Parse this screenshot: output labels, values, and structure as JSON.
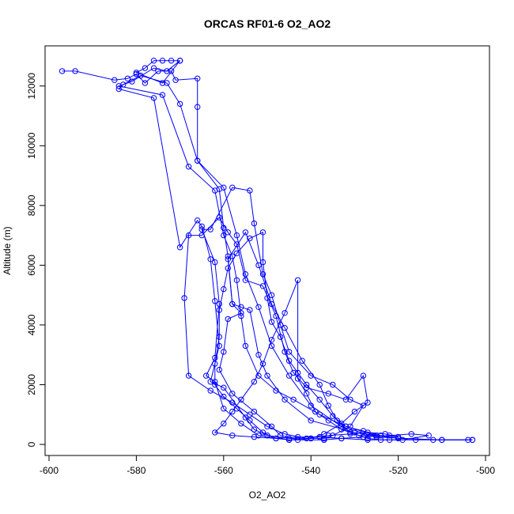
{
  "chart_data": {
    "type": "line",
    "title": "ORCAS RF01-6 O2_AO2",
    "xlabel": "O2_AO2",
    "ylabel": "Altitude (m)",
    "xlim": [
      -600,
      -500
    ],
    "ylim": [
      0,
      13000
    ],
    "x_ticks": [
      -600,
      -580,
      -560,
      -540,
      -520,
      -500
    ],
    "y_ticks": [
      0,
      2000,
      4000,
      6000,
      8000,
      10000,
      12000
    ],
    "x_tick_labels": [
      "-600",
      "-580",
      "-560",
      "-540",
      "-520",
      "-500"
    ],
    "y_tick_labels": [
      "0",
      "2000",
      "4000",
      "6000",
      "8000",
      "10000",
      "12000"
    ],
    "grid": false,
    "series_color": "#0000ff",
    "markers": "open-circle",
    "series": [
      {
        "points": [
          [
            -597,
            12500
          ],
          [
            -594,
            12500
          ],
          [
            -585,
            12200
          ],
          [
            -582,
            12250
          ],
          [
            -580,
            12400
          ],
          [
            -578,
            12100
          ],
          [
            -575,
            12500
          ],
          [
            -572,
            12500
          ],
          [
            -571,
            12200
          ],
          [
            -566,
            12250
          ],
          [
            -566,
            11300
          ],
          [
            -566,
            9500
          ],
          [
            -561,
            8550
          ],
          [
            -560,
            7250
          ],
          [
            -559,
            6300
          ],
          [
            -558,
            4700
          ],
          [
            -556,
            4600
          ],
          [
            -554,
            4500
          ],
          [
            -552,
            3000
          ],
          [
            -550,
            2300
          ],
          [
            -546,
            1500
          ],
          [
            -540,
            800
          ],
          [
            -530,
            400
          ],
          [
            -520,
            200
          ],
          [
            -510,
            150
          ],
          [
            -503,
            150
          ]
        ]
      },
      {
        "points": [
          [
            -503,
            150
          ],
          [
            -512,
            150
          ],
          [
            -525,
            250
          ],
          [
            -533,
            600
          ],
          [
            -540,
            1300
          ],
          [
            -545,
            2300
          ],
          [
            -549,
            3300
          ],
          [
            -552,
            4600
          ],
          [
            -555,
            5700
          ],
          [
            -557,
            7000
          ],
          [
            -560,
            8600
          ],
          [
            -566,
            9500
          ],
          [
            -570,
            11400
          ],
          [
            -573,
            12100
          ],
          [
            -579,
            12350
          ],
          [
            -583,
            12050
          ],
          [
            -584,
            11900
          ],
          [
            -576,
            11600
          ],
          [
            -570,
            6600
          ],
          [
            -566,
            7500
          ],
          [
            -565,
            7300
          ],
          [
            -563,
            6200
          ],
          [
            -562,
            4800
          ],
          [
            -561,
            3300
          ],
          [
            -563,
            2100
          ],
          [
            -560,
            1900
          ],
          [
            -555,
            900
          ],
          [
            -553,
            500
          ],
          [
            -550,
            300
          ],
          [
            -545,
            200
          ],
          [
            -537,
            200
          ]
        ]
      },
      {
        "points": [
          [
            -537,
            200
          ],
          [
            -535,
            300
          ],
          [
            -531,
            600
          ],
          [
            -528,
            1300
          ],
          [
            -531,
            1500
          ],
          [
            -535,
            2000
          ],
          [
            -540,
            2300
          ],
          [
            -545,
            3100
          ],
          [
            -547,
            4000
          ],
          [
            -549,
            5000
          ],
          [
            -551,
            5700
          ],
          [
            -553,
            7400
          ],
          [
            -554,
            8500
          ],
          [
            -558,
            8600
          ],
          [
            -563,
            7200
          ],
          [
            -565,
            7200
          ],
          [
            -562,
            6100
          ],
          [
            -561,
            4700
          ],
          [
            -562,
            2900
          ],
          [
            -564,
            2300
          ],
          [
            -562,
            2100
          ],
          [
            -560,
            1200
          ],
          [
            -556,
            700
          ],
          [
            -552,
            300
          ],
          [
            -545,
            150
          ],
          [
            -537,
            150
          ]
        ]
      },
      {
        "points": [
          [
            -537,
            150
          ],
          [
            -533,
            200
          ],
          [
            -528,
            250
          ],
          [
            -522,
            300
          ],
          [
            -517,
            350
          ],
          [
            -513,
            300
          ],
          [
            -519,
            150
          ],
          [
            -524,
            150
          ],
          [
            -527,
            200
          ],
          [
            -531,
            400
          ],
          [
            -534,
            800
          ],
          [
            -536,
            1300
          ],
          [
            -538,
            2000
          ],
          [
            -542,
            2800
          ],
          [
            -546,
            3900
          ],
          [
            -549,
            4700
          ],
          [
            -552,
            6000
          ],
          [
            -555,
            7100
          ],
          [
            -559,
            6200
          ],
          [
            -558,
            4700
          ],
          [
            -556,
            4400
          ],
          [
            -559,
            4200
          ],
          [
            -560,
            3100
          ],
          [
            -561,
            2500
          ],
          [
            -558,
            1700
          ],
          [
            -553,
            1100
          ],
          [
            -549,
            600
          ],
          [
            -547,
            300
          ],
          [
            -543,
            150
          ],
          [
            -540,
            200
          ]
        ]
      },
      {
        "points": [
          [
            -540,
            200
          ],
          [
            -537,
            350
          ],
          [
            -533,
            700
          ],
          [
            -530,
            1100
          ],
          [
            -527,
            1400
          ],
          [
            -528,
            2300
          ],
          [
            -532,
            1500
          ],
          [
            -536,
            1700
          ],
          [
            -541,
            1900
          ],
          [
            -544,
            2400
          ],
          [
            -546,
            3100
          ],
          [
            -548,
            4300
          ],
          [
            -551,
            5300
          ],
          [
            -555,
            5500
          ],
          [
            -557,
            6700
          ],
          [
            -559,
            7100
          ],
          [
            -561,
            7600
          ],
          [
            -565,
            7000
          ],
          [
            -568,
            7000
          ],
          [
            -569,
            4900
          ],
          [
            -568,
            2300
          ],
          [
            -563,
            1800
          ],
          [
            -558,
            1400
          ],
          [
            -554,
            1000
          ],
          [
            -550,
            600
          ],
          [
            -546,
            350
          ],
          [
            -541,
            200
          ],
          [
            -536,
            300
          ],
          [
            -531,
            350
          ],
          [
            -527,
            400
          ],
          [
            -523,
            350
          ],
          [
            -520,
            250
          ]
        ]
      },
      {
        "points": [
          [
            -520,
            250
          ],
          [
            -524,
            300
          ],
          [
            -528,
            450
          ],
          [
            -532,
            600
          ],
          [
            -535,
            950
          ],
          [
            -538,
            1500
          ],
          [
            -541,
            2000
          ],
          [
            -543,
            2400
          ],
          [
            -545,
            2800
          ],
          [
            -547,
            3600
          ],
          [
            -549,
            4100
          ],
          [
            -550,
            4900
          ],
          [
            -551,
            6100
          ],
          [
            -551,
            7100
          ],
          [
            -554,
            6900
          ],
          [
            -557,
            6400
          ],
          [
            -559,
            5900
          ],
          [
            -560,
            5200
          ],
          [
            -561,
            4500
          ],
          [
            -561,
            3600
          ],
          [
            -562,
            2700
          ],
          [
            -562,
            2000
          ],
          [
            -560,
            1600
          ],
          [
            -557,
            1200
          ],
          [
            -554,
            800
          ],
          [
            -551,
            400
          ],
          [
            -548,
            200
          ],
          [
            -545,
            150
          ]
        ]
      },
      {
        "points": [
          [
            -574,
            12850
          ],
          [
            -572,
            12850
          ],
          [
            -570,
            12850
          ],
          [
            -576,
            12850
          ],
          [
            -578,
            12600
          ],
          [
            -580,
            12450
          ],
          [
            -574,
            12100
          ],
          [
            -570,
            12850
          ],
          [
            -573,
            12500
          ],
          [
            -576,
            12600
          ],
          [
            -581,
            12150
          ],
          [
            -584,
            12000
          ],
          [
            -574,
            11700
          ],
          [
            -568,
            9300
          ],
          [
            -562,
            8500
          ],
          [
            -560,
            7000
          ],
          [
            -558,
            6300
          ],
          [
            -557,
            5500
          ],
          [
            -556,
            4300
          ],
          [
            -555,
            3300
          ],
          [
            -552,
            2300
          ],
          [
            -548,
            1800
          ],
          [
            -544,
            1500
          ],
          [
            -538,
            1000
          ],
          [
            -532,
            600
          ],
          [
            -525,
            300
          ]
        ]
      },
      {
        "points": [
          [
            -525,
            300
          ],
          [
            -529,
            300
          ],
          [
            -533,
            500
          ],
          [
            -536,
            800
          ],
          [
            -539,
            1100
          ],
          [
            -541,
            1700
          ],
          [
            -543,
            2200
          ],
          [
            -543,
            5500
          ],
          [
            -546,
            4400
          ],
          [
            -549,
            3500
          ],
          [
            -551,
            2700
          ],
          [
            -553,
            2100
          ],
          [
            -556,
            1500
          ],
          [
            -558,
            1100
          ],
          [
            -560,
            700
          ],
          [
            -562,
            400
          ],
          [
            -558,
            300
          ],
          [
            -553,
            250
          ],
          [
            -548,
            200
          ],
          [
            -543,
            250
          ],
          [
            -538,
            250
          ],
          [
            -533,
            200
          ],
          [
            -527,
            150
          ],
          [
            -522,
            150
          ],
          [
            -516,
            150
          ],
          [
            -510,
            150
          ],
          [
            -504,
            150
          ]
        ]
      }
    ]
  }
}
